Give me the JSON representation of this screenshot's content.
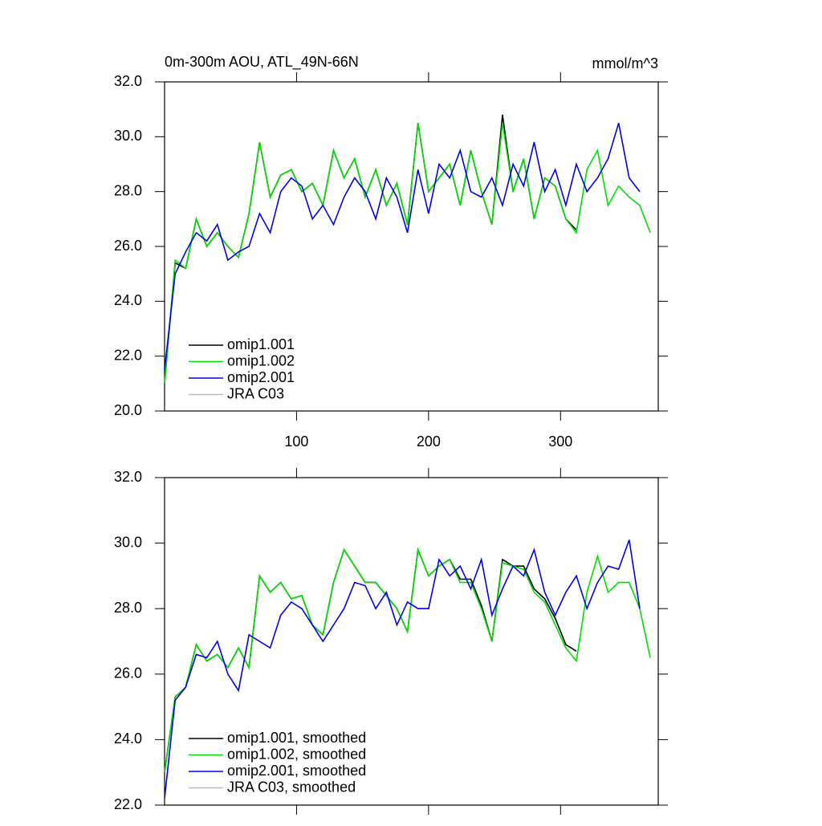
{
  "chart_data": [
    {
      "type": "line",
      "title": "0m-300m AOU, ATL_49N-66N",
      "units": "mmol/m^3",
      "x": [
        0,
        8,
        16,
        24,
        32,
        40,
        48,
        56,
        64,
        72,
        80,
        88,
        96,
        104,
        112,
        120,
        128,
        136,
        144,
        152,
        160,
        168,
        176,
        184,
        192,
        200,
        208,
        216,
        224,
        232,
        240,
        248,
        256,
        264,
        272,
        280,
        288,
        296,
        304,
        312,
        320,
        328,
        336,
        344,
        352,
        360,
        368
      ],
      "series": [
        {
          "name": "omip1.001",
          "color": "#000000",
          "values": [
            21.0,
            25.4,
            25.2,
            27.0,
            26.0,
            26.5,
            26.0,
            25.6,
            27.2,
            29.8,
            27.8,
            28.6,
            28.8,
            28.0,
            28.3,
            27.5,
            29.5,
            28.5,
            29.2,
            27.8,
            28.8,
            27.5,
            28.3,
            26.8,
            30.5,
            28.0,
            28.5,
            29.0,
            27.5,
            29.5,
            28.0,
            26.8,
            30.8,
            28.0,
            29.2,
            27.0,
            28.5,
            28.2,
            27.0,
            26.6,
            null,
            null,
            null,
            null,
            null,
            null,
            null
          ]
        },
        {
          "name": "omip1.002",
          "color": "#00dd00",
          "values": [
            21.0,
            25.5,
            25.2,
            27.0,
            26.0,
            26.5,
            26.0,
            25.6,
            27.2,
            29.8,
            27.8,
            28.6,
            28.8,
            28.0,
            28.3,
            27.5,
            29.5,
            28.5,
            29.2,
            27.8,
            28.8,
            27.5,
            28.3,
            26.8,
            30.5,
            28.0,
            28.5,
            29.0,
            27.5,
            29.5,
            28.0,
            26.8,
            30.5,
            28.0,
            29.2,
            27.0,
            28.5,
            28.2,
            27.0,
            26.5,
            28.8,
            29.5,
            27.5,
            28.2,
            27.8,
            27.5,
            26.5
          ]
        },
        {
          "name": "omip2.001",
          "color": "#0000ee",
          "values": [
            21.5,
            25.0,
            25.8,
            26.5,
            26.2,
            26.8,
            25.5,
            25.8,
            26.0,
            27.2,
            26.5,
            28.0,
            28.5,
            28.2,
            27.0,
            27.5,
            26.8,
            27.8,
            28.5,
            28.0,
            27.0,
            28.5,
            27.8,
            26.5,
            28.8,
            27.2,
            29.0,
            28.5,
            29.5,
            28.0,
            27.8,
            28.5,
            27.5,
            29.0,
            28.2,
            29.8,
            28.0,
            28.8,
            27.5,
            29.0,
            28.0,
            28.5,
            29.2,
            30.5,
            28.5,
            28.0,
            null
          ]
        },
        {
          "name": "JRA C03",
          "color": "#bbbbbb",
          "values": [
            null,
            null,
            null,
            null,
            null,
            null,
            null,
            null,
            null,
            null,
            null,
            null,
            null,
            null,
            null,
            null,
            null,
            null,
            null,
            null,
            null,
            null,
            null,
            null,
            null,
            null,
            null,
            null,
            null,
            null,
            null,
            null,
            null,
            null,
            null,
            null,
            null,
            null,
            null,
            null,
            null,
            null,
            null,
            null,
            null,
            null,
            null
          ]
        }
      ],
      "xlim": [
        0,
        374
      ],
      "xticks": [
        100,
        200,
        300
      ],
      "ylim": [
        20,
        32
      ],
      "yticks": [
        {
          "value": 20,
          "label": "20.0"
        },
        {
          "value": 22,
          "label": "22.0"
        },
        {
          "value": 24,
          "label": "24.0"
        },
        {
          "value": 26,
          "label": "26.0"
        },
        {
          "value": 28,
          "label": "28.0"
        },
        {
          "value": 30,
          "label": "30.0"
        },
        {
          "value": 32,
          "label": "32.0"
        }
      ],
      "xtick_labels": true,
      "legend": "lower left"
    },
    {
      "type": "line",
      "x": [
        0,
        8,
        16,
        24,
        32,
        40,
        48,
        56,
        64,
        72,
        80,
        88,
        96,
        104,
        112,
        120,
        128,
        136,
        144,
        152,
        160,
        168,
        176,
        184,
        192,
        200,
        208,
        216,
        224,
        232,
        240,
        248,
        256,
        264,
        272,
        280,
        288,
        296,
        304,
        312,
        320,
        328,
        336,
        344,
        352,
        360,
        368
      ],
      "series": [
        {
          "name": "omip1.001, smoothed",
          "color": "#000000",
          "values": [
            23.0,
            25.3,
            25.6,
            26.9,
            26.4,
            26.6,
            26.2,
            26.8,
            26.2,
            29.0,
            28.5,
            28.8,
            28.3,
            28.4,
            27.5,
            27.2,
            28.8,
            29.8,
            29.3,
            28.8,
            28.8,
            28.4,
            28.0,
            27.3,
            29.8,
            29.0,
            29.3,
            29.5,
            28.9,
            28.9,
            28.1,
            27.0,
            29.5,
            29.3,
            29.3,
            28.6,
            28.3,
            27.7,
            26.9,
            26.7,
            null,
            null,
            null,
            null,
            null,
            null,
            null
          ]
        },
        {
          "name": "omip1.002, smoothed",
          "color": "#00dd00",
          "values": [
            23.0,
            25.3,
            25.6,
            26.9,
            26.4,
            26.6,
            26.2,
            26.8,
            26.2,
            29.0,
            28.5,
            28.8,
            28.3,
            28.4,
            27.5,
            27.2,
            28.8,
            29.8,
            29.3,
            28.8,
            28.8,
            28.4,
            28.0,
            27.3,
            29.8,
            29.0,
            29.3,
            29.5,
            28.8,
            28.8,
            28.0,
            27.0,
            29.4,
            29.3,
            29.2,
            28.5,
            28.2,
            27.5,
            26.8,
            26.4,
            28.5,
            29.6,
            28.5,
            28.8,
            28.8,
            28.0,
            26.5
          ]
        },
        {
          "name": "omip2.001, smoothed",
          "color": "#0000ee",
          "values": [
            22.2,
            25.2,
            25.6,
            26.6,
            26.5,
            27.0,
            26.0,
            25.5,
            27.2,
            27.0,
            26.8,
            27.8,
            28.2,
            28.0,
            27.5,
            27.0,
            27.5,
            28.0,
            28.8,
            28.7,
            28.0,
            28.5,
            27.5,
            28.2,
            28.0,
            28.0,
            29.5,
            29.0,
            29.3,
            28.6,
            29.5,
            27.8,
            28.6,
            29.3,
            29.0,
            29.8,
            28.5,
            27.8,
            28.5,
            29.0,
            28.0,
            28.8,
            29.3,
            29.2,
            30.1,
            28.0,
            null
          ]
        },
        {
          "name": "JRA C03, smoothed",
          "color": "#bbbbbb",
          "values": [
            null,
            null,
            null,
            null,
            null,
            null,
            null,
            null,
            null,
            null,
            null,
            null,
            null,
            null,
            null,
            null,
            null,
            null,
            null,
            null,
            null,
            null,
            null,
            null,
            null,
            null,
            null,
            null,
            null,
            null,
            null,
            null,
            null,
            null,
            null,
            null,
            null,
            null,
            null,
            null,
            null,
            null,
            null,
            null,
            null,
            null,
            null
          ]
        }
      ],
      "xlim": [
        0,
        374
      ],
      "xticks": [
        100,
        200,
        300
      ],
      "ylim": [
        22,
        32
      ],
      "yticks": [
        {
          "value": 22,
          "label": "22.0"
        },
        {
          "value": 24,
          "label": "24.0"
        },
        {
          "value": 26,
          "label": "26.0"
        },
        {
          "value": 28,
          "label": "28.0"
        },
        {
          "value": 30,
          "label": "30.0"
        },
        {
          "value": 32,
          "label": "32.0"
        }
      ],
      "xtick_labels": false,
      "legend": "lower left"
    }
  ]
}
